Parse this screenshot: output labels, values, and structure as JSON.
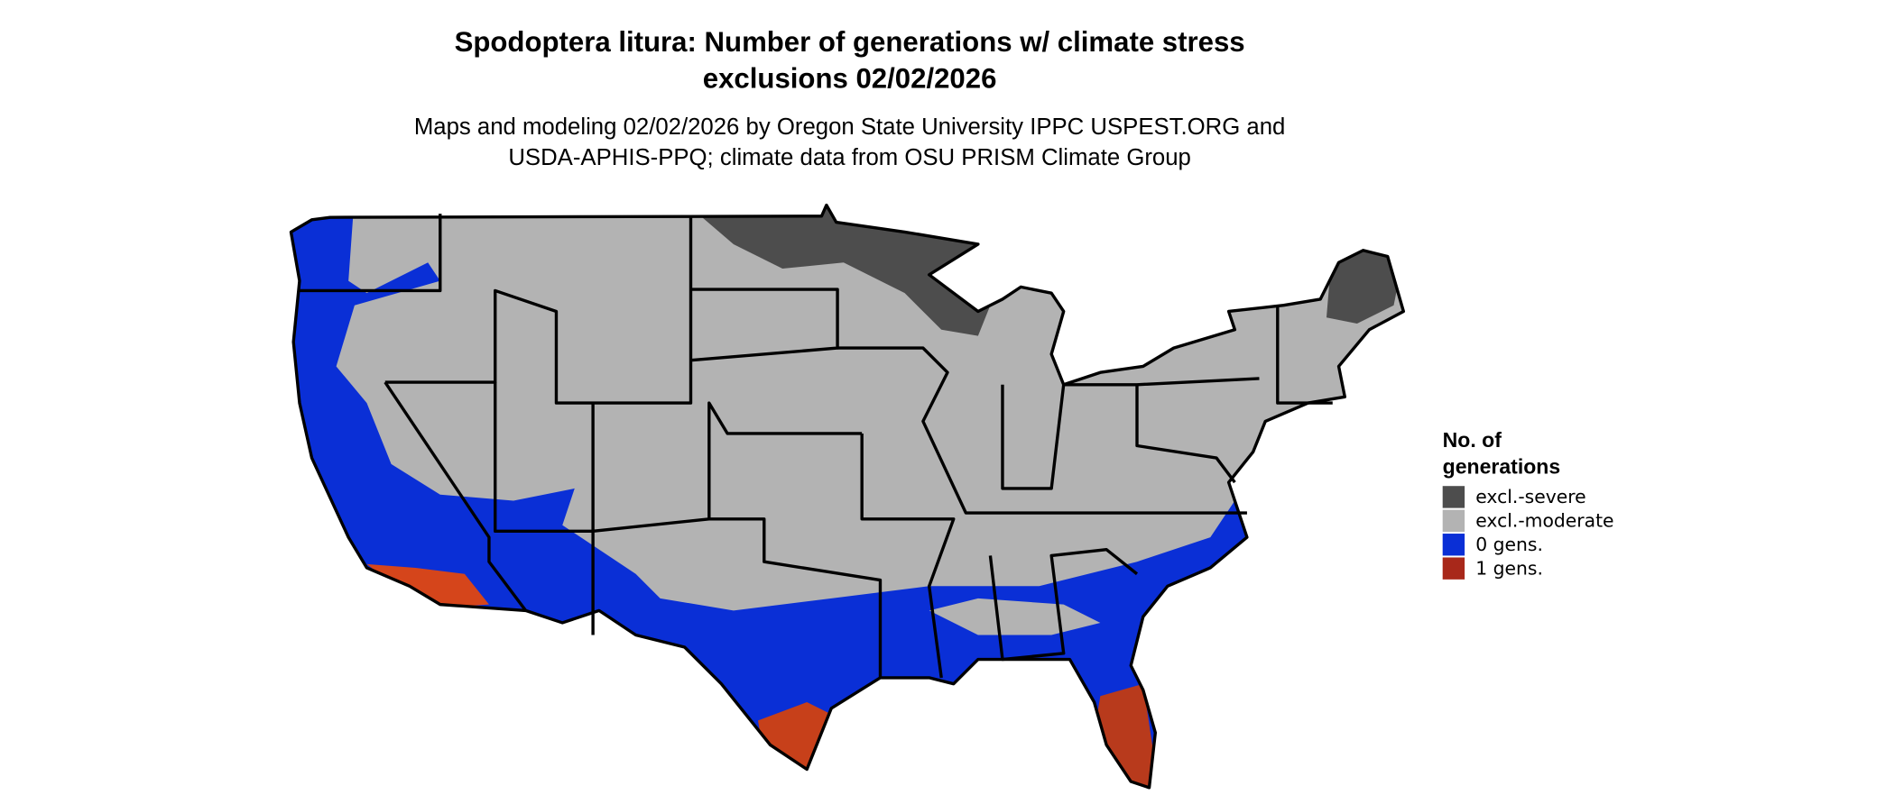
{
  "header": {
    "title": [
      "Spodoptera litura: Number of generations w/ climate stress",
      "exclusions 02/02/2026"
    ],
    "subtitle": [
      "Maps and modeling 02/02/2026 by Oregon State University IPPC USPEST.ORG and",
      "USDA-APHIS-PPQ; climate data from OSU PRISM Climate Group"
    ]
  },
  "legend": {
    "title": [
      "No. of",
      "generations"
    ],
    "items": [
      {
        "label": "excl.-severe",
        "color": "#4d4d4d"
      },
      {
        "label": "excl.-moderate",
        "color": "#b3b3b3"
      },
      {
        "label": "0 gens.",
        "color": "#0a2fd6"
      },
      {
        "label": "1 gens.",
        "color": "#a8281a"
      }
    ]
  }
}
